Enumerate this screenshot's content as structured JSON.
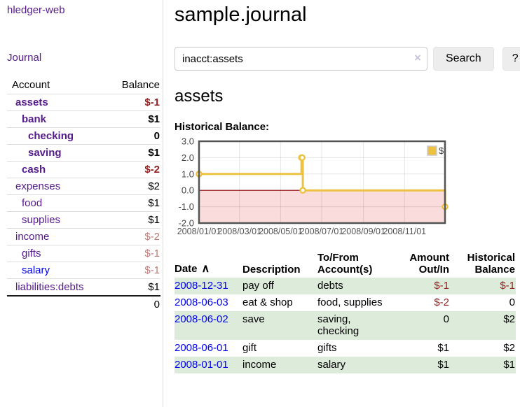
{
  "colors": {
    "purple": "#551A8B",
    "blue": "#0000EE",
    "neg_strong": "#8e1f1f",
    "neg_weak": "#c07a76",
    "stripe_green": "#ddebda",
    "chart_gold": "#EDC240",
    "chart_neg_fill": "#fadcdc",
    "chart_zero_line": "#8b0000",
    "chart_border": "#545454",
    "grid_line": "#e6e6e6"
  },
  "app": {
    "brand": "hledger-web"
  },
  "sidebar": {
    "journal_link": "Journal",
    "header": {
      "account": "Account",
      "balance": "Balance"
    },
    "accounts": [
      {
        "name": "assets",
        "balance": "$-1",
        "depth": 1,
        "bold": true,
        "neg": "strong",
        "link": "visited"
      },
      {
        "name": "bank",
        "balance": "$1",
        "depth": 2,
        "bold": true,
        "neg": "",
        "link": "visited"
      },
      {
        "name": "checking",
        "balance": "0",
        "depth": 3,
        "bold": true,
        "neg": "",
        "link": "visited"
      },
      {
        "name": "saving",
        "balance": "$1",
        "depth": 3,
        "bold": true,
        "neg": "",
        "link": "visited"
      },
      {
        "name": "cash",
        "balance": "$-2",
        "depth": 2,
        "bold": true,
        "neg": "strong",
        "link": "visited"
      },
      {
        "name": "expenses",
        "balance": "$2",
        "depth": 1,
        "bold": false,
        "neg": "",
        "link": "visited"
      },
      {
        "name": "food",
        "balance": "$1",
        "depth": 2,
        "bold": false,
        "neg": "",
        "link": "visited"
      },
      {
        "name": "supplies",
        "balance": "$1",
        "depth": 2,
        "bold": false,
        "neg": "",
        "link": "visited"
      },
      {
        "name": "income",
        "balance": "$-2",
        "depth": 1,
        "bold": false,
        "neg": "weak",
        "link": "visited"
      },
      {
        "name": "gifts",
        "balance": "$-1",
        "depth": 2,
        "bold": false,
        "neg": "weak",
        "link": "visited"
      },
      {
        "name": "salary",
        "balance": "$-1",
        "depth": 2,
        "bold": false,
        "neg": "weak",
        "link": "unvisited"
      },
      {
        "name": "liabilities:debts",
        "balance": "$1",
        "depth": 1,
        "bold": false,
        "neg": "",
        "link": "visited"
      }
    ],
    "total": "0"
  },
  "header": {
    "title": "sample.journal"
  },
  "search": {
    "value": "inacct:assets",
    "clear_icon": "×",
    "button_label": "Search",
    "help_label": "?"
  },
  "account_page": {
    "heading": "assets",
    "chart_label": "Historical Balance:"
  },
  "chart_data": {
    "type": "line",
    "step": true,
    "title": "Historical Balance:",
    "legend": {
      "label": "$",
      "position": "top-right"
    },
    "series": [
      {
        "name": "$",
        "x": [
          "2008-01-01",
          "2008-06-01",
          "2008-06-02",
          "2008-06-03",
          "2008-12-31"
        ],
        "y": [
          1,
          2,
          2,
          0,
          -1
        ]
      }
    ],
    "x_domain": [
      "2008-01-01",
      "2008-12-31"
    ],
    "x_ticks": [
      {
        "date": "2008-01-01",
        "label": "2008/01/01"
      },
      {
        "date": "2008-03-01",
        "label": "2008/03/01"
      },
      {
        "date": "2008-05-01",
        "label": "2008/05/01"
      },
      {
        "date": "2008-07-01",
        "label": "2008/07/01"
      },
      {
        "date": "2008-09-01",
        "label": "2008/09/01"
      },
      {
        "date": "2008-11-01",
        "label": "2008/11/01"
      }
    ],
    "y_ticks": [
      {
        "value": 3,
        "label": "3.0"
      },
      {
        "value": 2,
        "label": "2.0"
      },
      {
        "value": 1,
        "label": "1.0"
      },
      {
        "value": 0,
        "label": "0.0"
      },
      {
        "value": -1,
        "label": "-1.0"
      },
      {
        "value": -2,
        "label": "-2.0"
      }
    ],
    "ylim": [
      -2,
      3
    ],
    "grid": true,
    "negative_region_shaded": true
  },
  "register": {
    "columns": [
      {
        "label": "Date",
        "sort_icon": "∧",
        "align": "left"
      },
      {
        "label": "Description",
        "align": "left"
      },
      {
        "label": "To/From\nAccount(s)",
        "align": "left"
      },
      {
        "label": "Amount\nOut/In",
        "align": "right"
      },
      {
        "label": "Historical\nBalance",
        "align": "right"
      }
    ],
    "rows": [
      {
        "date": "2008-12-31",
        "description": "pay off",
        "accounts": "debts",
        "amount": "$-1",
        "balance": "$-1"
      },
      {
        "date": "2008-06-03",
        "description": "eat & shop",
        "accounts": "food, supplies",
        "amount": "$-2",
        "balance": "0"
      },
      {
        "date": "2008-06-02",
        "description": "save",
        "accounts": "saving, checking",
        "amount": "0",
        "balance": "$2"
      },
      {
        "date": "2008-06-01",
        "description": "gift",
        "accounts": "gifts",
        "amount": "$1",
        "balance": "$2"
      },
      {
        "date": "2008-01-01",
        "description": "income",
        "accounts": "salary",
        "amount": "$1",
        "balance": "$1"
      }
    ]
  }
}
